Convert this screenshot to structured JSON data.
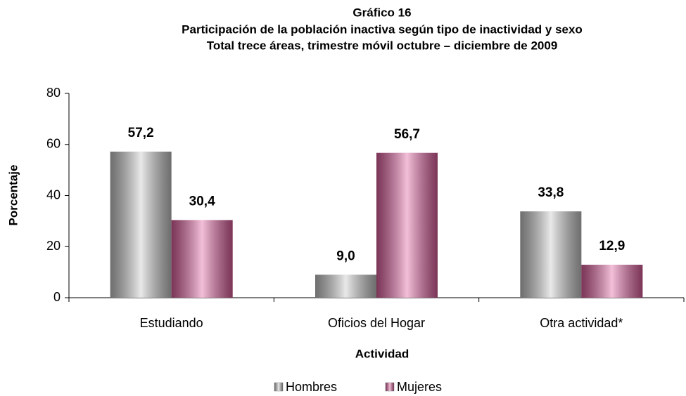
{
  "chart_data": {
    "type": "bar",
    "title": "Gráfico 16",
    "subtitle": [
      "Participación de la población inactiva según tipo de inactividad y sexo",
      "Total trece áreas, trimestre móvil octubre – diciembre de 2009"
    ],
    "x_label": "Actividad",
    "y_label": "Porcentaje",
    "categories": [
      "Estudiando",
      "Oficios del Hogar",
      "Otra actividad*"
    ],
    "series": [
      {
        "name": "Hombres",
        "color": "#c8c8c8",
        "values": [
          57.2,
          9.0,
          33.8
        ],
        "value_labels": [
          "57,2",
          "9,0",
          "33,8"
        ]
      },
      {
        "name": "Mujeres",
        "color": "#e0609f",
        "values": [
          30.4,
          56.7,
          12.9
        ],
        "value_labels": [
          "30,4",
          "56,7",
          "12,9"
        ]
      }
    ],
    "ylim": [
      0,
      80
    ],
    "yticks": [
      0,
      20,
      40,
      60,
      80
    ],
    "grid": false,
    "legend": "bottom"
  }
}
